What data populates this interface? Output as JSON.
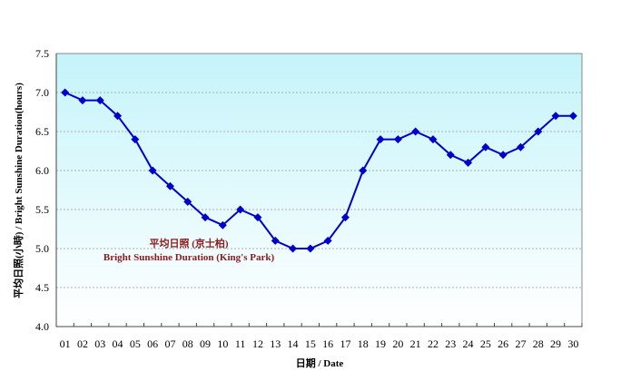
{
  "chart_data": {
    "type": "line",
    "title": "",
    "xlabel": "日期 / Date",
    "ylabel": "平均日照(小時) / Bright Sunshine Duration(hours)",
    "annotation": [
      "平均日照 (京士柏)",
      "Bright Sunshine Duration (King's Park)"
    ],
    "categories": [
      "01",
      "02",
      "03",
      "04",
      "05",
      "06",
      "07",
      "08",
      "09",
      "10",
      "11",
      "12",
      "13",
      "14",
      "15",
      "16",
      "17",
      "18",
      "19",
      "20",
      "21",
      "22",
      "23",
      "24",
      "25",
      "26",
      "27",
      "28",
      "29",
      "30"
    ],
    "series": [
      {
        "name": "Bright Sunshine Duration (King's Park)",
        "color": "#0000cc",
        "marker": "diamond",
        "values": [
          7.0,
          6.9,
          6.9,
          6.7,
          6.4,
          6.0,
          5.8,
          5.6,
          5.4,
          5.3,
          5.5,
          5.4,
          5.1,
          5.0,
          5.0,
          5.1,
          5.4,
          6.0,
          6.4,
          6.4,
          6.5,
          6.4,
          6.2,
          6.1,
          6.3,
          6.2,
          6.3,
          6.5,
          6.7,
          6.7
        ]
      }
    ],
    "yticks": [
      "4.0",
      "4.5",
      "5.0",
      "5.5",
      "6.0",
      "6.5",
      "7.0",
      "7.5"
    ],
    "ylim": [
      4.0,
      7.5
    ],
    "grid": true,
    "legend_position": "none",
    "background_gradient": [
      "#c4f4fa",
      "#ffffff"
    ]
  }
}
